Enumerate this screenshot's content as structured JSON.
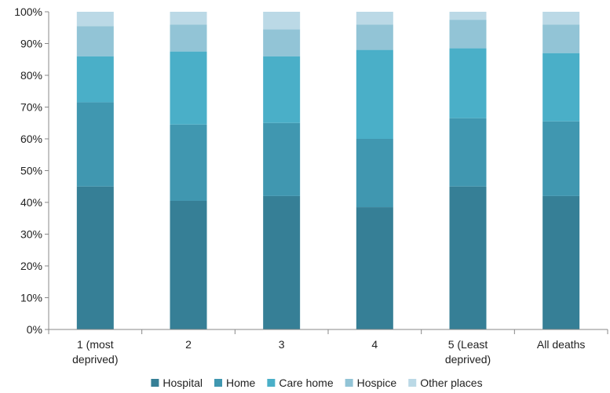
{
  "chart_data": {
    "type": "bar",
    "stacked": true,
    "percent_stacked": true,
    "categories": [
      [
        "1 (most",
        "deprived)"
      ],
      [
        "2"
      ],
      [
        "3"
      ],
      [
        "4"
      ],
      [
        "5 (Least",
        "deprived)"
      ],
      [
        "All deaths"
      ]
    ],
    "series": [
      {
        "name": "Hospital",
        "color": "#367f96",
        "values": [
          45,
          40.5,
          42,
          38.5,
          45,
          42
        ]
      },
      {
        "name": "Home",
        "color": "#4097b0",
        "values": [
          26.5,
          24,
          23,
          21.5,
          21.5,
          23.5
        ]
      },
      {
        "name": "Care home",
        "color": "#4aafc8",
        "values": [
          14.5,
          23,
          21,
          28,
          22,
          21.5
        ]
      },
      {
        "name": "Hospice",
        "color": "#92c4d6",
        "values": [
          9.5,
          8.5,
          8.5,
          8,
          9,
          9
        ]
      },
      {
        "name": "Other places",
        "color": "#bbd9e6",
        "values": [
          4.5,
          4,
          5.5,
          4,
          2.5,
          4
        ]
      }
    ],
    "yticks": [
      "0%",
      "10%",
      "20%",
      "30%",
      "40%",
      "50%",
      "60%",
      "70%",
      "80%",
      "90%",
      "100%"
    ],
    "ylim": [
      0,
      100
    ],
    "grid": false,
    "legend_position": "bottom"
  }
}
